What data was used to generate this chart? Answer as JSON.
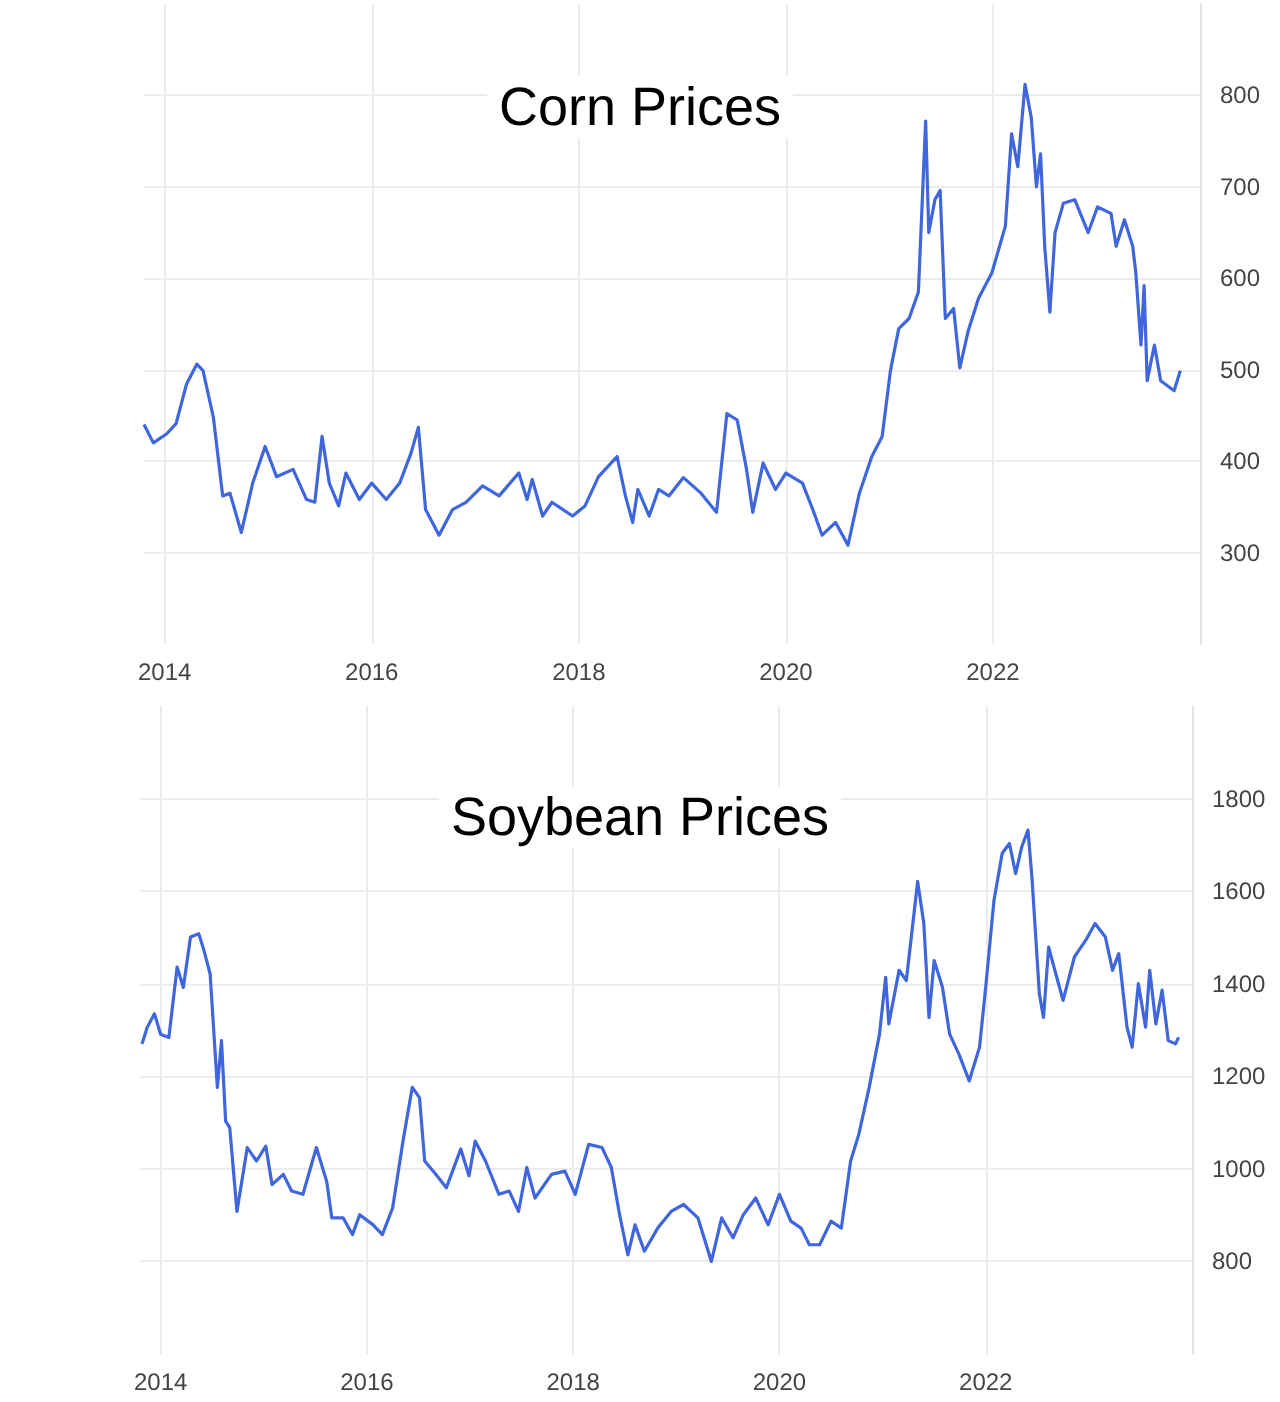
{
  "chart_data": [
    {
      "type": "line",
      "title": "Corn Prices",
      "color": "#3f66dc",
      "grid": true,
      "marker": "none",
      "xlim": [
        2013.8,
        2024.0
      ],
      "xticks": [
        2014,
        2016,
        2018,
        2020,
        2022
      ],
      "ylim": [
        200,
        900
      ],
      "yticks": [
        300,
        400,
        500,
        600,
        700,
        800
      ],
      "x": [
        2013.8,
        2013.89,
        2014.02,
        2014.11,
        2014.21,
        2014.31,
        2014.37,
        2014.47,
        2014.56,
        2014.63,
        2014.74,
        2014.85,
        2014.97,
        2015.08,
        2015.24,
        2015.37,
        2015.45,
        2015.52,
        2015.59,
        2015.68,
        2015.75,
        2015.88,
        2016.0,
        2016.14,
        2016.27,
        2016.38,
        2016.45,
        2016.52,
        2016.65,
        2016.78,
        2016.91,
        2017.07,
        2017.23,
        2017.42,
        2017.5,
        2017.55,
        2017.65,
        2017.74,
        2017.94,
        2018.06,
        2018.19,
        2018.37,
        2018.45,
        2018.52,
        2018.57,
        2018.68,
        2018.77,
        2018.87,
        2019.01,
        2019.18,
        2019.33,
        2019.43,
        2019.53,
        2019.62,
        2019.68,
        2019.78,
        2019.9,
        2020.0,
        2020.16,
        2020.26,
        2020.35,
        2020.48,
        2020.6,
        2020.71,
        2020.83,
        2020.93,
        2021.01,
        2021.09,
        2021.19,
        2021.28,
        2021.35,
        2021.38,
        2021.44,
        2021.49,
        2021.54,
        2021.62,
        2021.68,
        2021.76,
        2021.86,
        2021.99,
        2022.12,
        2022.18,
        2022.24,
        2022.31,
        2022.37,
        2022.42,
        2022.46,
        2022.5,
        2022.55,
        2022.6,
        2022.68,
        2022.79,
        2022.92,
        2023.01,
        2023.14,
        2023.19,
        2023.27,
        2023.35,
        2023.38,
        2023.43,
        2023.46,
        2023.49,
        2023.56,
        2023.62,
        2023.75,
        2023.81
      ],
      "values": [
        440,
        420,
        430,
        441,
        484,
        506,
        499,
        448,
        362,
        365,
        322,
        376,
        416,
        383,
        391,
        358,
        355,
        427,
        376,
        351,
        387,
        358,
        376,
        358,
        376,
        409,
        437,
        347,
        319,
        347,
        355,
        373,
        362,
        387,
        358,
        380,
        340,
        355,
        340,
        351,
        383,
        405,
        362,
        333,
        369,
        340,
        369,
        362,
        382,
        365,
        344,
        452,
        445,
        391,
        344,
        398,
        369,
        387,
        376,
        347,
        319,
        333,
        308,
        365,
        405,
        427,
        499,
        545,
        556,
        585,
        772,
        650,
        686,
        696,
        556,
        567,
        502,
        542,
        578,
        606,
        657,
        758,
        722,
        812,
        776,
        700,
        736,
        635,
        563,
        650,
        682,
        686,
        650,
        678,
        671,
        635,
        664,
        635,
        606,
        527,
        592,
        488,
        527,
        488,
        477,
        499
      ]
    },
    {
      "type": "line",
      "title": "Soybean Prices",
      "color": "#3f66dc",
      "grid": true,
      "marker": "none",
      "xlim": [
        2013.8,
        2024.0
      ],
      "xticks": [
        2014,
        2016,
        2018,
        2020,
        2022
      ],
      "ylim": [
        600,
        2000
      ],
      "yticks": [
        800,
        1000,
        1200,
        1400,
        1600,
        1800
      ],
      "x": [
        2013.82,
        2013.87,
        2013.94,
        2014.0,
        2014.08,
        2014.16,
        2014.22,
        2014.29,
        2014.37,
        2014.42,
        2014.48,
        2014.55,
        2014.59,
        2014.63,
        2014.67,
        2014.74,
        2014.84,
        2014.93,
        2015.02,
        2015.08,
        2015.19,
        2015.27,
        2015.38,
        2015.51,
        2015.61,
        2015.66,
        2015.77,
        2015.86,
        2015.93,
        2016.06,
        2016.15,
        2016.25,
        2016.35,
        2016.44,
        2016.51,
        2016.56,
        2016.67,
        2016.77,
        2016.91,
        2016.99,
        2017.05,
        2017.15,
        2017.28,
        2017.38,
        2017.47,
        2017.55,
        2017.63,
        2017.79,
        2017.92,
        2018.02,
        2018.15,
        2018.28,
        2018.37,
        2018.45,
        2018.53,
        2018.6,
        2018.69,
        2018.82,
        2018.95,
        2019.07,
        2019.21,
        2019.34,
        2019.44,
        2019.55,
        2019.65,
        2019.77,
        2019.89,
        2020.0,
        2020.11,
        2020.21,
        2020.29,
        2020.39,
        2020.5,
        2020.6,
        2020.69,
        2020.77,
        2020.87,
        2020.97,
        2021.03,
        2021.06,
        2021.16,
        2021.23,
        2021.29,
        2021.34,
        2021.4,
        2021.45,
        2021.5,
        2021.58,
        2021.65,
        2021.74,
        2021.84,
        2021.94,
        2022.0,
        2022.08,
        2022.16,
        2022.23,
        2022.29,
        2022.35,
        2022.41,
        2022.45,
        2022.52,
        2022.56,
        2022.61,
        2022.68,
        2022.75,
        2022.86,
        2022.97,
        2023.06,
        2023.16,
        2023.23,
        2023.29,
        2023.37,
        2023.42,
        2023.48,
        2023.55,
        2023.59,
        2023.65,
        2023.71,
        2023.77,
        2023.84,
        2023.87
      ],
      "values": [
        1270,
        1306,
        1335,
        1291,
        1284,
        1436,
        1392,
        1501,
        1508,
        1472,
        1421,
        1176,
        1277,
        1103,
        1089,
        908,
        1046,
        1017,
        1049,
        966,
        988,
        952,
        945,
        1046,
        973,
        894,
        894,
        858,
        901,
        879,
        858,
        916,
        1060,
        1176,
        1154,
        1017,
        988,
        959,
        1043,
        985,
        1060,
        1017,
        945,
        952,
        908,
        1003,
        937,
        988,
        995,
        945,
        1053,
        1046,
        1003,
        901,
        814,
        879,
        822,
        872,
        908,
        923,
        894,
        800,
        894,
        851,
        901,
        937,
        879,
        945,
        887,
        872,
        836,
        836,
        887,
        872,
        1017,
        1075,
        1176,
        1291,
        1414,
        1313,
        1429,
        1407,
        1523,
        1621,
        1530,
        1327,
        1450,
        1393,
        1291,
        1248,
        1190,
        1263,
        1393,
        1580,
        1682,
        1703,
        1638,
        1696,
        1732,
        1624,
        1378,
        1327,
        1479,
        1421,
        1364,
        1458,
        1494,
        1530,
        1501,
        1429,
        1465,
        1306,
        1263,
        1400,
        1306,
        1429,
        1313,
        1386,
        1277,
        1270,
        1284
      ]
    }
  ]
}
